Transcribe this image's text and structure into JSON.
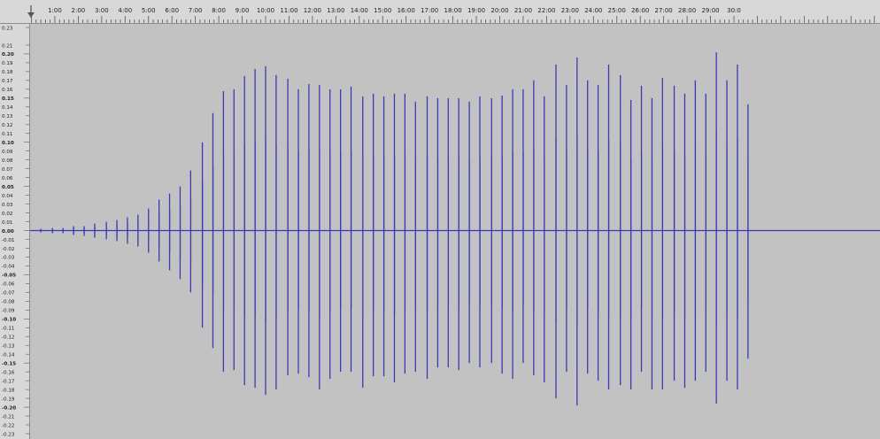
{
  "timeline": {
    "ticks": [
      "1:00",
      "2:00",
      "3:00",
      "4:00",
      "5:00",
      "6:00",
      "7:00",
      "8:00",
      "9:00",
      "10:00",
      "11:00",
      "12:00",
      "13:00",
      "14:00",
      "15:00",
      "16:00",
      "17:00",
      "18:00",
      "19:00",
      "20:00",
      "21:00",
      "22:00",
      "23:00",
      "24:00",
      "25:00",
      "26:00",
      "27:00",
      "28:00",
      "29:00",
      "30:0"
    ]
  },
  "amplitude_scale": {
    "labels": [
      "0.23",
      "0.21",
      "0.20",
      "0.19",
      "0.18",
      "0.17",
      "0.16",
      "0.15",
      "0.14",
      "0.13",
      "0.12",
      "0.11",
      "0.10",
      "0.09",
      "0.08",
      "0.07",
      "0.06",
      "0.05",
      "0.04",
      "0.03",
      "0.02",
      "0.01",
      "0.00",
      "-0.01",
      "-0.02",
      "-0.03",
      "-0.04",
      "-0.05",
      "-0.06",
      "-0.07",
      "-0.08",
      "-0.09",
      "-0.10",
      "-0.11",
      "-0.12",
      "-0.13",
      "-0.14",
      "-0.15",
      "-0.16",
      "-0.17",
      "-0.18",
      "-0.19",
      "-0.20",
      "-0.21",
      "-0.22",
      "-0.23"
    ],
    "bold_labels": [
      "0.20",
      "0.15",
      "0.10",
      "0.05",
      "0.00",
      "-0.05",
      "-0.10",
      "-0.15",
      "-0.20"
    ]
  },
  "waveform": {
    "color": "#3a3ab8",
    "background": "#c2c2c2",
    "y_range": [
      -0.23,
      0.23
    ],
    "x_range_min": [
      0,
      30
    ],
    "spikes": [
      {
        "t": 0.4,
        "up": 0.002,
        "down": 0.002
      },
      {
        "t": 0.9,
        "up": 0.003,
        "down": 0.003
      },
      {
        "t": 1.35,
        "up": 0.003,
        "down": 0.003
      },
      {
        "t": 1.8,
        "up": 0.005,
        "down": 0.005
      },
      {
        "t": 2.25,
        "up": 0.005,
        "down": 0.006
      },
      {
        "t": 2.7,
        "up": 0.008,
        "down": 0.008
      },
      {
        "t": 3.2,
        "up": 0.01,
        "down": 0.01
      },
      {
        "t": 3.65,
        "up": 0.012,
        "down": 0.012
      },
      {
        "t": 4.1,
        "up": 0.015,
        "down": 0.015
      },
      {
        "t": 4.55,
        "up": 0.018,
        "down": 0.018
      },
      {
        "t": 5.0,
        "up": 0.025,
        "down": 0.025
      },
      {
        "t": 5.45,
        "up": 0.035,
        "down": 0.035
      },
      {
        "t": 5.9,
        "up": 0.042,
        "down": 0.045
      },
      {
        "t": 6.35,
        "up": 0.05,
        "down": 0.055
      },
      {
        "t": 6.8,
        "up": 0.068,
        "down": 0.07
      },
      {
        "t": 7.3,
        "up": 0.1,
        "down": 0.11
      },
      {
        "t": 7.75,
        "up": 0.133,
        "down": 0.133
      },
      {
        "t": 8.2,
        "up": 0.158,
        "down": 0.16
      },
      {
        "t": 8.65,
        "up": 0.16,
        "down": 0.158
      },
      {
        "t": 9.1,
        "up": 0.175,
        "down": 0.175
      },
      {
        "t": 9.55,
        "up": 0.183,
        "down": 0.178
      },
      {
        "t": 10.0,
        "up": 0.186,
        "down": 0.186
      },
      {
        "t": 10.45,
        "up": 0.176,
        "down": 0.18
      },
      {
        "t": 10.95,
        "up": 0.172,
        "down": 0.164
      },
      {
        "t": 11.4,
        "up": 0.16,
        "down": 0.162
      },
      {
        "t": 11.85,
        "up": 0.166,
        "down": 0.166
      },
      {
        "t": 12.3,
        "up": 0.165,
        "down": 0.18
      },
      {
        "t": 12.75,
        "up": 0.16,
        "down": 0.168
      },
      {
        "t": 13.2,
        "up": 0.16,
        "down": 0.16
      },
      {
        "t": 13.65,
        "up": 0.163,
        "down": 0.16
      },
      {
        "t": 14.15,
        "up": 0.152,
        "down": 0.178
      },
      {
        "t": 14.6,
        "up": 0.155,
        "down": 0.165
      },
      {
        "t": 15.05,
        "up": 0.152,
        "down": 0.165
      },
      {
        "t": 15.5,
        "up": 0.155,
        "down": 0.172
      },
      {
        "t": 15.95,
        "up": 0.155,
        "down": 0.162
      },
      {
        "t": 16.4,
        "up": 0.146,
        "down": 0.16
      },
      {
        "t": 16.9,
        "up": 0.152,
        "down": 0.168
      },
      {
        "t": 17.35,
        "up": 0.15,
        "down": 0.155
      },
      {
        "t": 17.8,
        "up": 0.15,
        "down": 0.155
      },
      {
        "t": 18.25,
        "up": 0.15,
        "down": 0.158
      },
      {
        "t": 18.7,
        "up": 0.146,
        "down": 0.15
      },
      {
        "t": 19.15,
        "up": 0.152,
        "down": 0.155
      },
      {
        "t": 19.65,
        "up": 0.15,
        "down": 0.15
      },
      {
        "t": 20.1,
        "up": 0.153,
        "down": 0.162
      },
      {
        "t": 20.55,
        "up": 0.16,
        "down": 0.168
      },
      {
        "t": 21.0,
        "up": 0.16,
        "down": 0.15
      },
      {
        "t": 21.45,
        "up": 0.17,
        "down": 0.164
      },
      {
        "t": 21.9,
        "up": 0.152,
        "down": 0.172
      },
      {
        "t": 22.4,
        "up": 0.188,
        "down": 0.19
      },
      {
        "t": 22.85,
        "up": 0.165,
        "down": 0.16
      },
      {
        "t": 23.3,
        "up": 0.196,
        "down": 0.198
      },
      {
        "t": 23.75,
        "up": 0.17,
        "down": 0.162
      },
      {
        "t": 24.2,
        "up": 0.165,
        "down": 0.17
      },
      {
        "t": 24.65,
        "up": 0.188,
        "down": 0.18
      },
      {
        "t": 25.15,
        "up": 0.176,
        "down": 0.175
      },
      {
        "t": 25.6,
        "up": 0.148,
        "down": 0.18
      },
      {
        "t": 26.05,
        "up": 0.164,
        "down": 0.16
      },
      {
        "t": 26.5,
        "up": 0.15,
        "down": 0.18
      },
      {
        "t": 26.95,
        "up": 0.173,
        "down": 0.18
      },
      {
        "t": 27.45,
        "up": 0.164,
        "down": 0.17
      },
      {
        "t": 27.9,
        "up": 0.155,
        "down": 0.178
      },
      {
        "t": 28.35,
        "up": 0.17,
        "down": 0.17
      },
      {
        "t": 28.8,
        "up": 0.155,
        "down": 0.16
      },
      {
        "t": 29.25,
        "up": 0.202,
        "down": 0.196
      },
      {
        "t": 29.7,
        "up": 0.17,
        "down": 0.17
      },
      {
        "t": 30.15,
        "up": 0.188,
        "down": 0.18
      },
      {
        "t": 30.6,
        "up": 0.143,
        "down": 0.145
      }
    ]
  }
}
